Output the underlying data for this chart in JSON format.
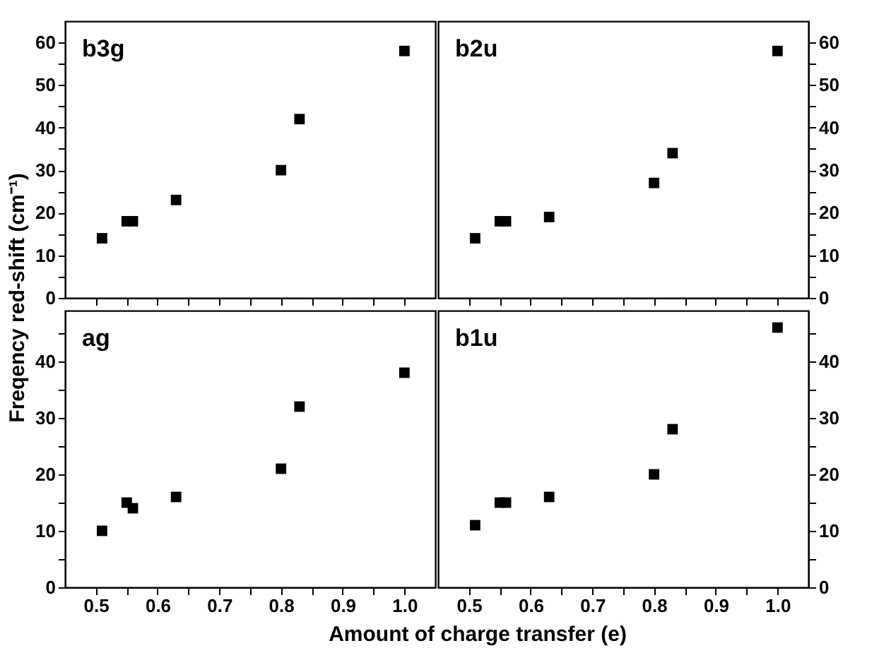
{
  "chart_data": [
    {
      "type": "scatter",
      "title": "b3g",
      "ylabel": "Freqency red-shift  (cm⁻¹)",
      "x": [
        0.51,
        0.55,
        0.56,
        0.63,
        0.8,
        0.83,
        1.0
      ],
      "series": [
        {
          "color": "#000000",
          "values": [
            14,
            18,
            18,
            23,
            30,
            42,
            58
          ]
        }
      ],
      "xlim": [
        0.45,
        1.05
      ],
      "ylim": [
        0,
        65
      ],
      "xticks": [
        0.5,
        0.55,
        0.6,
        0.65,
        0.7,
        0.75,
        0.8,
        0.85,
        0.9,
        0.95,
        1.0
      ],
      "yticks": [
        0,
        {
          "value": 5,
          "label": null
        },
        10,
        {
          "value": 15,
          "label": null
        },
        20,
        {
          "value": 25,
          "label": null
        },
        30,
        {
          "value": 35,
          "label": null
        },
        40,
        {
          "value": 45,
          "label": null
        },
        50,
        {
          "value": 55,
          "label": null
        },
        60
      ],
      "tick_labels": "y",
      "marker": "square",
      "grid": false,
      "legend": false
    },
    {
      "type": "scatter",
      "title": "b2u",
      "x": [
        0.51,
        0.55,
        0.56,
        0.63,
        0.8,
        0.83,
        1.0
      ],
      "series": [
        {
          "color": "#000000",
          "values": [
            14,
            18,
            18,
            19,
            27,
            34,
            58
          ]
        }
      ],
      "xlim": [
        0.45,
        1.05
      ],
      "ylim": [
        0,
        65
      ],
      "xticks": [
        0.5,
        0.55,
        0.6,
        0.65,
        0.7,
        0.75,
        0.8,
        0.85,
        0.9,
        0.95,
        1.0
      ],
      "yticks": [
        0,
        {
          "value": 5,
          "label": null
        },
        10,
        {
          "value": 15,
          "label": null
        },
        20,
        {
          "value": 25,
          "label": null
        },
        30,
        {
          "value": 35,
          "label": null
        },
        40,
        {
          "value": 45,
          "label": null
        },
        50,
        {
          "value": 55,
          "label": null
        },
        60
      ],
      "tick_labels": "y",
      "marker": "square",
      "grid": false,
      "legend": false
    },
    {
      "type": "scatter",
      "title": "ag",
      "xlabel": "Amount of charge transfer (e)",
      "x": [
        0.51,
        0.55,
        0.56,
        0.63,
        0.8,
        0.83,
        1.0
      ],
      "series": [
        {
          "color": "#000000",
          "values": [
            10,
            15,
            14,
            16,
            21,
            32,
            38
          ]
        }
      ],
      "xlim": [
        0.45,
        1.05
      ],
      "ylim": [
        0,
        49
      ],
      "xticks": [
        0.5,
        {
          "value": 0.55,
          "label": null
        },
        0.6,
        {
          "value": 0.65,
          "label": null
        },
        0.7,
        {
          "value": 0.75,
          "label": null
        },
        0.8,
        {
          "value": 0.85,
          "label": null
        },
        0.9,
        {
          "value": 0.95,
          "label": null
        },
        {
          "value": 1.0,
          "label": "1.0"
        }
      ],
      "yticks": [
        0,
        {
          "value": 5,
          "label": null
        },
        10,
        {
          "value": 15,
          "label": null
        },
        20,
        {
          "value": 25,
          "label": null
        },
        30,
        {
          "value": 35,
          "label": null
        },
        40,
        {
          "value": 45,
          "label": null
        }
      ],
      "marker": "square",
      "grid": false,
      "legend": false
    },
    {
      "type": "scatter",
      "title": "b1u",
      "x": [
        0.51,
        0.55,
        0.56,
        0.63,
        0.8,
        0.83,
        1.0
      ],
      "series": [
        {
          "color": "#000000",
          "values": [
            11,
            15,
            15,
            16,
            20,
            28,
            46
          ]
        }
      ],
      "xlim": [
        0.45,
        1.05
      ],
      "ylim": [
        0,
        49
      ],
      "xticks": [
        0.5,
        {
          "value": 0.55,
          "label": null
        },
        0.6,
        {
          "value": 0.65,
          "label": null
        },
        0.7,
        {
          "value": 0.75,
          "label": null
        },
        0.8,
        {
          "value": 0.85,
          "label": null
        },
        0.9,
        {
          "value": 0.95,
          "label": null
        },
        {
          "value": 1.0,
          "label": "1.0"
        }
      ],
      "yticks": [
        0,
        {
          "value": 5,
          "label": null
        },
        10,
        {
          "value": 15,
          "label": null
        },
        20,
        {
          "value": 25,
          "label": null
        },
        30,
        {
          "value": 35,
          "label": null
        },
        40,
        {
          "value": 45,
          "label": null
        }
      ],
      "marker": "square",
      "grid": false,
      "legend": false
    }
  ]
}
